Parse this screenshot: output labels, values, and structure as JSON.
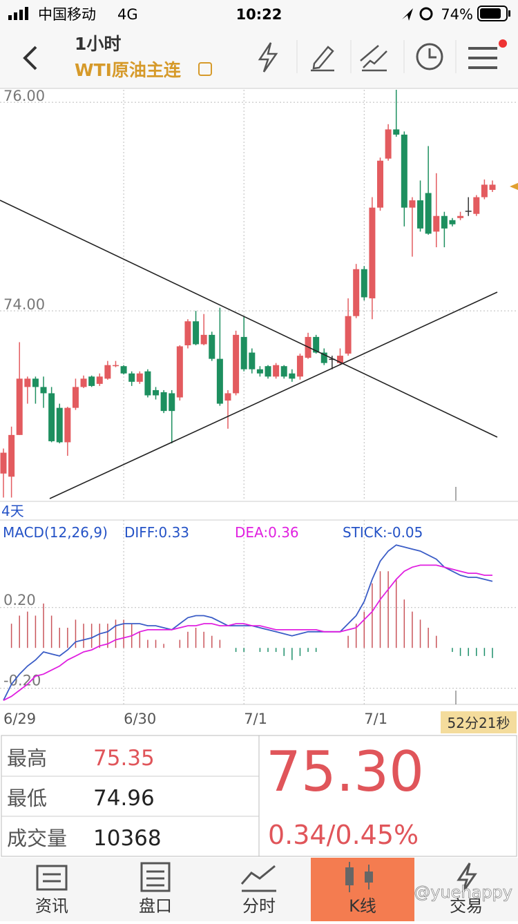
{
  "status_bar": {
    "carrier": "中国移动",
    "network": "4G",
    "time": "10:22",
    "battery": "74%"
  },
  "header": {
    "period": "1小时",
    "symbol": "WTI原油主连"
  },
  "chart_data": [
    {
      "type": "candlestick",
      "range_label": "4天",
      "up_color": "#e35b5f",
      "down_color": "#1d8f5f",
      "flat_color": "#333333",
      "ylim": [
        72.18,
        76.12
      ],
      "yticks": [
        {
          "value": 74,
          "label": "74.00"
        },
        {
          "value": 76,
          "label": "76.00"
        }
      ],
      "grid": true,
      "categories": [
        "6/29",
        null,
        null,
        null,
        null,
        null,
        null,
        null,
        null,
        null,
        null,
        null,
        null,
        null,
        null,
        "6/30",
        null,
        null,
        null,
        null,
        null,
        null,
        null,
        null,
        null,
        null,
        null,
        null,
        null,
        null,
        "7/1",
        null,
        null,
        null,
        null,
        null,
        null,
        null,
        null,
        null,
        null,
        null,
        null,
        null,
        null,
        "7/1",
        null,
        null,
        null,
        null,
        null,
        null,
        null,
        null,
        null,
        null,
        null,
        null,
        null,
        null,
        null,
        null
      ],
      "ohlc": [
        [
          72.44,
          72.68,
          72.21,
          72.64
        ],
        [
          72.41,
          72.89,
          72.21,
          72.81
        ],
        [
          72.81,
          73.7,
          72.81,
          73.35
        ],
        [
          73.27,
          73.37,
          73.11,
          73.35
        ],
        [
          73.35,
          73.37,
          73.11,
          73.27
        ],
        [
          73.27,
          73.37,
          73.07,
          73.21
        ],
        [
          73.21,
          73.27,
          72.74,
          72.75
        ],
        [
          73.07,
          73.11,
          72.73,
          72.74
        ],
        [
          72.74,
          73.08,
          72.61,
          73.07
        ],
        [
          73.07,
          73.35,
          73.05,
          73.27
        ],
        [
          73.27,
          73.38,
          73.26,
          73.35
        ],
        [
          73.37,
          73.38,
          73.27,
          73.28
        ],
        [
          73.3,
          73.4,
          73.28,
          73.37
        ],
        [
          73.35,
          73.52,
          73.34,
          73.48
        ],
        [
          73.47,
          73.52,
          73.46,
          73.48
        ],
        [
          73.47,
          73.48,
          73.39,
          73.4
        ],
        [
          73.4,
          73.42,
          73.28,
          73.32
        ],
        [
          73.32,
          73.42,
          73.3,
          73.4
        ],
        [
          73.42,
          73.44,
          73.17,
          73.19
        ],
        [
          73.24,
          73.27,
          73.15,
          73.19
        ],
        [
          73.22,
          73.24,
          73.02,
          73.04
        ],
        [
          73.21,
          73.24,
          72.73,
          73.04
        ],
        [
          73.17,
          73.67,
          73.14,
          73.66
        ],
        [
          73.67,
          73.92,
          73.64,
          73.9
        ],
        [
          73.9,
          74.0,
          73.67,
          73.68
        ],
        [
          73.68,
          73.97,
          73.67,
          73.77
        ],
        [
          73.77,
          73.8,
          73.52,
          73.54
        ],
        [
          73.54,
          74.03,
          73.09,
          73.11
        ],
        [
          73.14,
          73.24,
          72.87,
          73.21
        ],
        [
          73.21,
          73.81,
          73.19,
          73.77
        ],
        [
          73.75,
          73.95,
          73.42,
          73.44
        ],
        [
          73.6,
          73.64,
          73.4,
          73.44
        ],
        [
          73.44,
          73.47,
          73.37,
          73.4
        ],
        [
          73.47,
          73.48,
          73.35,
          73.37
        ],
        [
          73.37,
          73.5,
          73.35,
          73.48
        ],
        [
          73.47,
          73.48,
          73.35,
          73.37
        ],
        [
          73.4,
          73.44,
          73.32,
          73.35
        ],
        [
          73.37,
          73.59,
          73.34,
          73.57
        ],
        [
          73.55,
          73.79,
          73.54,
          73.75
        ],
        [
          73.75,
          73.77,
          73.59,
          73.6
        ],
        [
          73.6,
          73.64,
          73.48,
          73.5
        ],
        [
          73.54,
          73.57,
          73.44,
          73.54
        ],
        [
          73.5,
          73.64,
          73.48,
          73.57
        ],
        [
          73.59,
          74.12,
          73.57,
          73.95
        ],
        [
          73.95,
          74.45,
          73.93,
          74.4
        ],
        [
          74.4,
          74.43,
          74.1,
          74.13
        ],
        [
          74.12,
          75.09,
          73.92,
          74.99
        ],
        [
          74.99,
          75.47,
          74.96,
          75.44
        ],
        [
          75.46,
          75.79,
          75.44,
          75.74
        ],
        [
          75.74,
          76.12,
          75.67,
          75.69
        ],
        [
          75.69,
          75.72,
          74.81,
          74.99
        ],
        [
          74.99,
          75.09,
          74.52,
          75.06
        ],
        [
          75.06,
          75.25,
          74.76,
          74.79
        ],
        [
          75.13,
          75.58,
          74.73,
          74.74
        ],
        [
          74.76,
          75.32,
          74.61,
          74.91
        ],
        [
          74.91,
          74.95,
          74.61,
          74.79
        ],
        [
          74.87,
          74.89,
          74.81,
          74.83
        ],
        [
          74.89,
          74.95,
          74.87,
          74.91
        ],
        [
          74.96,
          75.09,
          74.91,
          74.96
        ],
        [
          74.93,
          75.11,
          74.91,
          75.09
        ],
        [
          75.09,
          75.26,
          75.07,
          75.21
        ],
        [
          75.16,
          75.25,
          75.14,
          75.21
        ]
      ]
    },
    {
      "type": "macd",
      "title": "MACD(12,26,9)",
      "ylim": [
        -0.28,
        0.61
      ],
      "yticks": [
        {
          "value": 0.2,
          "label": "0.20"
        },
        {
          "value": -0.2,
          "label": "-0.20"
        }
      ],
      "grid": true,
      "countdown": "52分21秒",
      "series": [
        {
          "name": "DIFF:0.33",
          "color": "#3a5cc6",
          "values": [
            -0.26,
            -0.18,
            -0.13,
            -0.09,
            -0.06,
            -0.02,
            -0.03,
            -0.04,
            -0.01,
            0.03,
            0.04,
            0.05,
            0.07,
            0.08,
            0.11,
            0.12,
            0.12,
            0.12,
            0.11,
            0.11,
            0.1,
            0.09,
            0.12,
            0.15,
            0.16,
            0.16,
            0.15,
            0.13,
            0.11,
            0.11,
            0.11,
            0.11,
            0.1,
            0.09,
            0.08,
            0.07,
            0.06,
            0.07,
            0.08,
            0.08,
            0.08,
            0.08,
            0.08,
            0.12,
            0.16,
            0.23,
            0.34,
            0.43,
            0.48,
            0.51,
            0.5,
            0.49,
            0.48,
            0.46,
            0.44,
            0.4,
            0.38,
            0.36,
            0.35,
            0.35,
            0.34,
            0.33
          ]
        },
        {
          "name": "DEA:0.36",
          "color": "#e01fe0",
          "values": [
            -0.26,
            -0.24,
            -0.21,
            -0.18,
            -0.14,
            -0.13,
            -0.11,
            -0.09,
            -0.06,
            -0.04,
            -0.02,
            -0.01,
            0.01,
            0.02,
            0.04,
            0.05,
            0.06,
            0.08,
            0.09,
            0.09,
            0.09,
            0.09,
            0.1,
            0.11,
            0.11,
            0.12,
            0.12,
            0.11,
            0.11,
            0.12,
            0.12,
            0.11,
            0.11,
            0.1,
            0.09,
            0.09,
            0.09,
            0.09,
            0.09,
            0.09,
            0.08,
            0.08,
            0.08,
            0.09,
            0.1,
            0.14,
            0.18,
            0.24,
            0.29,
            0.34,
            0.38,
            0.4,
            0.41,
            0.41,
            0.41,
            0.4,
            0.39,
            0.38,
            0.37,
            0.37,
            0.36,
            0.36
          ]
        }
      ],
      "stick": {
        "name": "STICK:-0.05",
        "color": "#3a5cc6",
        "up_color": "#c9545a",
        "down_color": "#1d8f6a",
        "values": [
          0,
          0.12,
          0.16,
          0.18,
          0.16,
          0.22,
          0.16,
          0.1,
          0.1,
          0.14,
          0.12,
          0.12,
          0.12,
          0.12,
          0.14,
          0.14,
          0.12,
          0.08,
          0.04,
          0.04,
          0.02,
          0,
          0.04,
          0.08,
          0.1,
          0.08,
          0.06,
          0.04,
          0,
          -0.02,
          -0.02,
          0,
          -0.02,
          -0.02,
          -0.02,
          -0.04,
          -0.06,
          -0.04,
          -0.02,
          -0.02,
          0,
          0,
          0,
          0.06,
          0.12,
          0.18,
          0.32,
          0.38,
          0.38,
          0.34,
          0.24,
          0.18,
          0.14,
          0.1,
          0.06,
          0,
          -0.02,
          -0.04,
          -0.04,
          -0.04,
          -0.04,
          -0.05
        ]
      }
    }
  ],
  "quote": {
    "rows": [
      [
        "最高",
        "75.35"
      ],
      [
        "最低",
        "74.96"
      ],
      [
        "成交量",
        "10368"
      ]
    ],
    "last": "75.30",
    "change": "0.34/0.45%"
  },
  "tabs": [
    "资讯",
    "盘口",
    "分时",
    "K线",
    "交易"
  ],
  "watermark": "@yuehappy"
}
